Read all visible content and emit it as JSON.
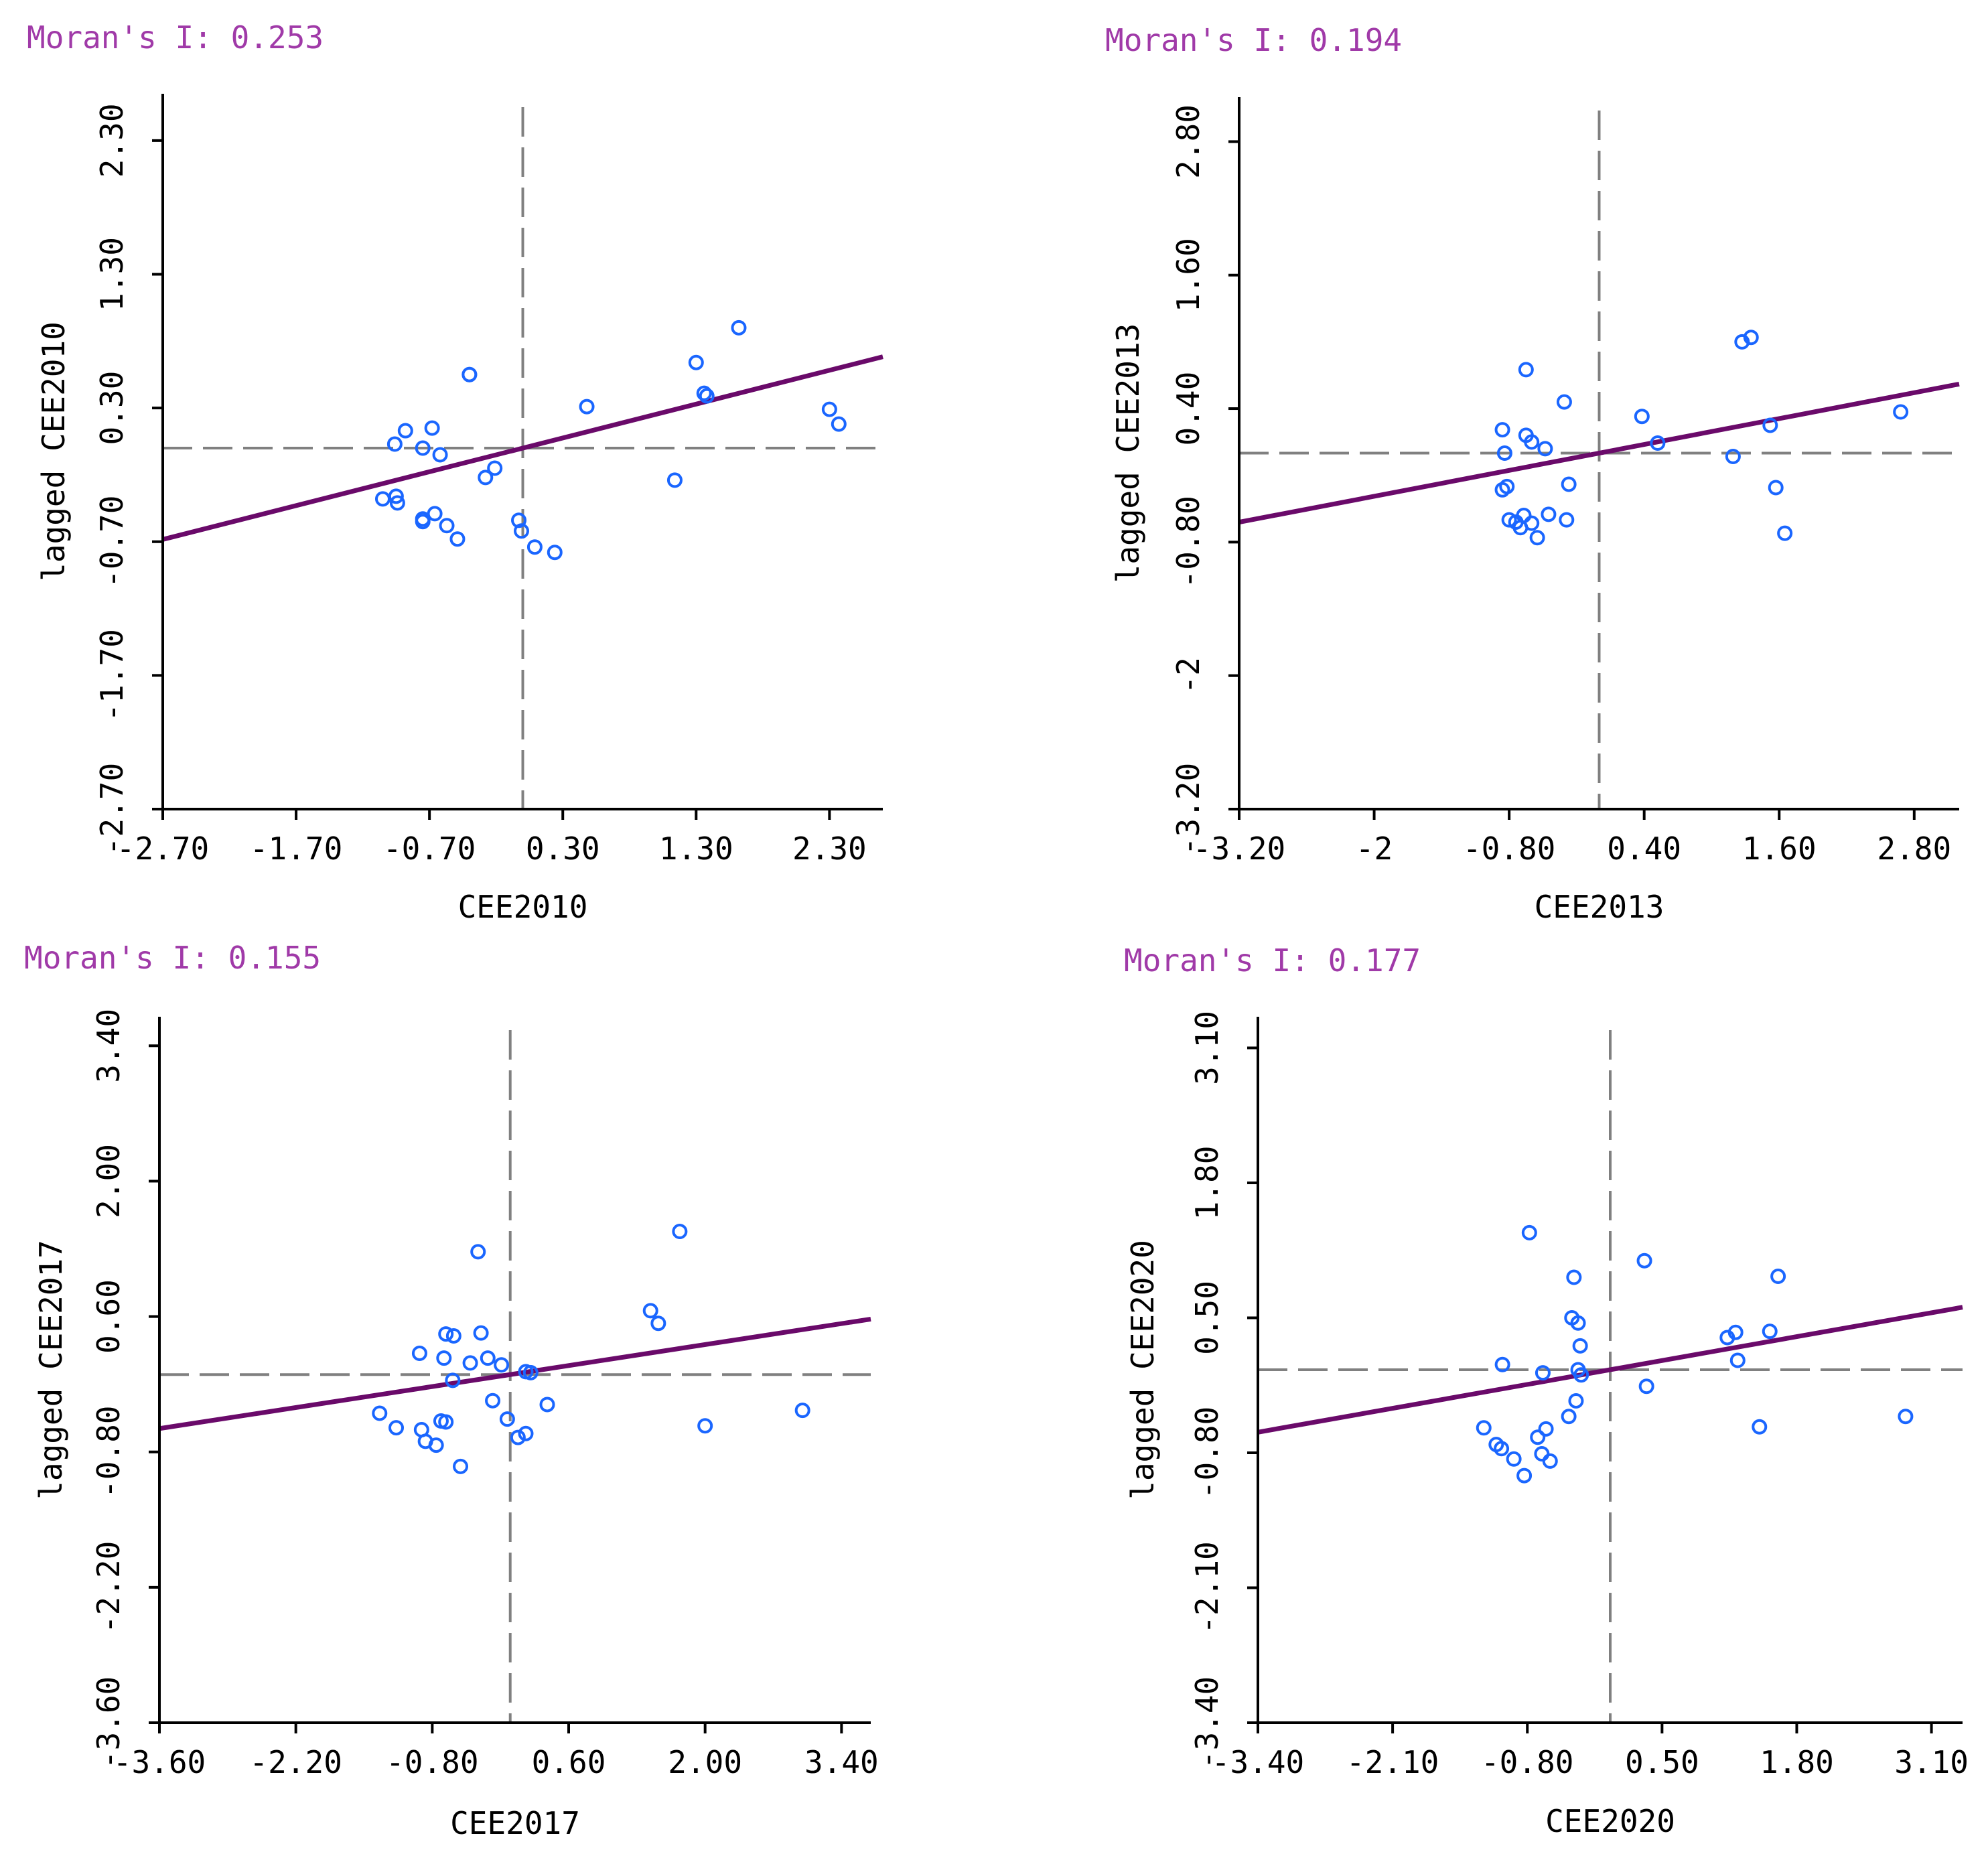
{
  "colors": {
    "background": "#ffffff",
    "axis": "#000000",
    "point_stroke": "#1a66ff",
    "fit_line": "#6a0a6a",
    "reference_line": "#808080",
    "moran_label": "#a03aa8"
  },
  "chart_data": [
    {
      "type": "scatter",
      "moran_label": "Moran's I: 0.253",
      "moran_i": 0.253,
      "xlabel": "CEE2010",
      "ylabel": "lagged CEE2010",
      "xlim": [
        -2.7,
        2.7
      ],
      "ylim": [
        -2.7,
        2.65
      ],
      "xticks": [
        -2.7,
        -1.7,
        -0.7,
        0.3,
        1.3,
        2.3
      ],
      "xtick_labels": [
        "-2.70",
        "-1.70",
        "-0.70",
        "0.30",
        "1.30",
        "2.30"
      ],
      "yticks": [
        -2.7,
        -1.7,
        -0.7,
        0.3,
        1.3,
        2.3
      ],
      "ytick_labels": [
        "-2.70",
        "-1.70",
        "-0.70",
        "0.30",
        "1.30",
        "2.30"
      ],
      "fit_slope": 0.253,
      "ref_x": 0.0,
      "ref_y": 0.0,
      "points": [
        [
          -0.96,
          0.03
        ],
        [
          -0.88,
          0.13
        ],
        [
          -0.68,
          0.15
        ],
        [
          -0.75,
          0.0
        ],
        [
          -0.62,
          -0.05
        ],
        [
          -0.4,
          0.55
        ],
        [
          -0.28,
          -0.22
        ],
        [
          -0.21,
          -0.15
        ],
        [
          -1.05,
          -0.38
        ],
        [
          -0.95,
          -0.36
        ],
        [
          -0.94,
          -0.41
        ],
        [
          -0.75,
          -0.53
        ],
        [
          -0.75,
          -0.55
        ],
        [
          -0.66,
          -0.49
        ],
        [
          -0.57,
          -0.58
        ],
        [
          -0.49,
          -0.68
        ],
        [
          -0.03,
          -0.54
        ],
        [
          -0.01,
          -0.62
        ],
        [
          0.09,
          -0.74
        ],
        [
          0.24,
          -0.78
        ],
        [
          0.48,
          0.31
        ],
        [
          1.14,
          -0.24
        ],
        [
          1.3,
          0.64
        ],
        [
          1.38,
          0.39
        ],
        [
          1.62,
          0.9
        ],
        [
          2.3,
          0.29
        ],
        [
          2.37,
          0.18
        ],
        [
          1.36,
          0.41
        ],
        [
          -0.4,
          0.55
        ]
      ]
    },
    {
      "type": "scatter",
      "moran_label": "Moran's I: 0.194",
      "moran_i": 0.194,
      "xlabel": "CEE2013",
      "ylabel": "lagged CEE2013",
      "xlim": [
        -3.2,
        3.2
      ],
      "ylim": [
        -3.2,
        3.2
      ],
      "xticks": [
        -3.2,
        -2.0,
        -0.8,
        0.4,
        1.6,
        2.8
      ],
      "xtick_labels": [
        "-3.20",
        "-2",
        "-0.80",
        "0.40",
        "1.60",
        "2.80"
      ],
      "yticks": [
        -3.2,
        -2.0,
        -0.8,
        0.4,
        1.6,
        2.8
      ],
      "ytick_labels": [
        "-3.20",
        "-2",
        "-0.80",
        "0.40",
        "1.60",
        "2.80"
      ],
      "fit_slope": 0.194,
      "ref_x": 0.0,
      "ref_y": 0.0,
      "points": [
        [
          -0.86,
          0.21
        ],
        [
          -0.84,
          0.0
        ],
        [
          -0.65,
          0.75
        ],
        [
          -0.65,
          0.16
        ],
        [
          -0.6,
          0.1
        ],
        [
          -0.48,
          0.04
        ],
        [
          -0.31,
          0.46
        ],
        [
          -0.27,
          -0.28
        ],
        [
          -0.86,
          -0.33
        ],
        [
          -0.82,
          -0.3
        ],
        [
          -0.8,
          -0.6
        ],
        [
          -0.74,
          -0.62
        ],
        [
          -0.7,
          -0.67
        ],
        [
          -0.67,
          -0.56
        ],
        [
          -0.6,
          -0.63
        ],
        [
          -0.55,
          -0.76
        ],
        [
          -0.45,
          -0.55
        ],
        [
          -0.29,
          -0.6
        ],
        [
          0.38,
          0.33
        ],
        [
          0.52,
          0.09
        ],
        [
          1.19,
          -0.03
        ],
        [
          1.27,
          1.0
        ],
        [
          1.35,
          1.04
        ],
        [
          1.52,
          0.25
        ],
        [
          1.57,
          -0.31
        ],
        [
          1.65,
          -0.72
        ],
        [
          2.68,
          0.37
        ]
      ]
    },
    {
      "type": "scatter",
      "moran_label": "Moran's I: 0.155",
      "moran_i": 0.155,
      "xlabel": "CEE2017",
      "ylabel": "lagged CEE2017",
      "xlim": [
        -3.6,
        3.7
      ],
      "ylim": [
        -3.6,
        3.7
      ],
      "xticks": [
        -3.6,
        -2.2,
        -0.8,
        0.6,
        2.0,
        3.4
      ],
      "xtick_labels": [
        "-3.60",
        "-2.20",
        "-0.80",
        "0.60",
        "2.00",
        "3.40"
      ],
      "yticks": [
        -3.6,
        -2.2,
        -0.8,
        0.6,
        2.0,
        3.4
      ],
      "ytick_labels": [
        "-3.60",
        "-2.20",
        "-0.80",
        "0.60",
        "2.00",
        "3.40"
      ],
      "fit_slope": 0.155,
      "ref_x": 0.0,
      "ref_y": 0.0,
      "points": [
        [
          -0.93,
          0.22
        ],
        [
          -0.66,
          0.42
        ],
        [
          -0.58,
          0.4
        ],
        [
          -0.33,
          1.27
        ],
        [
          -0.3,
          0.43
        ],
        [
          -0.68,
          0.17
        ],
        [
          -0.59,
          -0.06
        ],
        [
          -0.41,
          0.12
        ],
        [
          -0.23,
          0.17
        ],
        [
          -0.09,
          0.1
        ],
        [
          0.16,
          0.03
        ],
        [
          0.21,
          0.02
        ],
        [
          -1.34,
          -0.4
        ],
        [
          -1.17,
          -0.55
        ],
        [
          -0.91,
          -0.57
        ],
        [
          -0.87,
          -0.69
        ],
        [
          -0.76,
          -0.73
        ],
        [
          -0.66,
          -0.49
        ],
        [
          -0.51,
          -0.95
        ],
        [
          -0.18,
          -0.27
        ],
        [
          -0.03,
          -0.46
        ],
        [
          0.08,
          -0.65
        ],
        [
          0.16,
          -0.61
        ],
        [
          0.38,
          -0.31
        ],
        [
          1.44,
          0.66
        ],
        [
          1.52,
          0.53
        ],
        [
          1.74,
          1.48
        ],
        [
          2.0,
          -0.53
        ],
        [
          3.0,
          -0.37
        ],
        [
          -0.71,
          -0.48
        ]
      ]
    },
    {
      "type": "scatter",
      "moran_label": "Moran's I: 0.177",
      "moran_i": 0.177,
      "xlabel": "CEE2020",
      "ylabel": "lagged CEE2020",
      "xlim": [
        -3.4,
        3.4
      ],
      "ylim": [
        -3.4,
        3.4
      ],
      "xticks": [
        -3.4,
        -2.1,
        -0.8,
        0.5,
        1.8,
        3.1
      ],
      "xtick_labels": [
        "-3.40",
        "-2.10",
        "-0.80",
        "0.50",
        "1.80",
        "3.10"
      ],
      "yticks": [
        -3.4,
        -2.1,
        -0.8,
        0.5,
        1.8,
        3.1
      ],
      "ytick_labels": [
        "-3.40",
        "-2.10",
        "-0.80",
        "0.50",
        "1.80",
        "3.10"
      ],
      "fit_slope": 0.177,
      "ref_x": 0.0,
      "ref_y": 0.0,
      "points": [
        [
          -0.78,
          1.32
        ],
        [
          -0.35,
          0.89
        ],
        [
          0.33,
          1.05
        ],
        [
          -0.37,
          0.5
        ],
        [
          -0.31,
          0.45
        ],
        [
          -0.29,
          0.23
        ],
        [
          -1.04,
          0.05
        ],
        [
          -0.65,
          -0.03
        ],
        [
          -0.31,
          0.0
        ],
        [
          -0.28,
          -0.05
        ],
        [
          -1.22,
          -0.56
        ],
        [
          -1.1,
          -0.72
        ],
        [
          -1.05,
          -0.76
        ],
        [
          -0.93,
          -0.86
        ],
        [
          -0.83,
          -1.02
        ],
        [
          -0.7,
          -0.65
        ],
        [
          -0.62,
          -0.57
        ],
        [
          -0.66,
          -0.81
        ],
        [
          -0.58,
          -0.88
        ],
        [
          -0.4,
          -0.45
        ],
        [
          -0.33,
          -0.3
        ],
        [
          0.35,
          -0.16
        ],
        [
          1.13,
          0.31
        ],
        [
          1.21,
          0.36
        ],
        [
          1.23,
          0.09
        ],
        [
          1.44,
          -0.55
        ],
        [
          1.54,
          0.37
        ],
        [
          1.62,
          0.9
        ],
        [
          2.85,
          -0.45
        ]
      ]
    }
  ]
}
